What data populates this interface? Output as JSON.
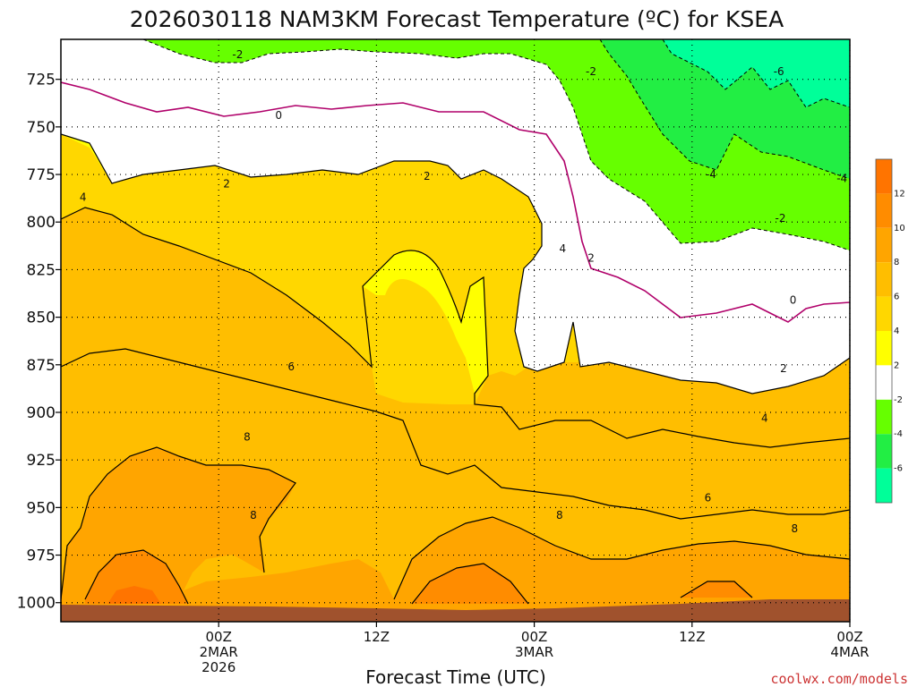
{
  "chart_data": {
    "type": "heatmap",
    "title": "2026030118 NAM3KM Forecast Temperature (ºC) for KSEA",
    "xlabel": "Forecast Time (UTC)",
    "credit": "coolwx.com/models",
    "y_axis": {
      "ticks": [
        "725",
        "750",
        "775",
        "800",
        "825",
        "850",
        "875",
        "900",
        "925",
        "950",
        "975",
        "1000"
      ],
      "values": [
        725,
        750,
        775,
        800,
        825,
        850,
        875,
        900,
        925,
        950,
        975,
        1000
      ],
      "range": [
        704,
        1010
      ],
      "inverted": true,
      "unit": "hPa"
    },
    "x_axis": {
      "range_hours": [
        -10,
        40
      ],
      "ticks": [
        {
          "hour": 0,
          "lines": [
            "00Z",
            "2MAR",
            "2026"
          ]
        },
        {
          "hour": 10,
          "lines": [
            "12Z"
          ]
        },
        {
          "hour": 20,
          "lines": [
            "00Z",
            "3MAR"
          ]
        },
        {
          "hour": 30,
          "lines": [
            "12Z"
          ]
        },
        {
          "hour": 40,
          "lines": [
            "00Z",
            "4MAR"
          ]
        }
      ]
    },
    "color_scale": {
      "bands": [
        {
          "from": 12,
          "to": 14,
          "color": "#FF7400"
        },
        {
          "from": 10,
          "to": 12,
          "color": "#FF8C00"
        },
        {
          "from": 8,
          "to": 10,
          "color": "#FFA500"
        },
        {
          "from": 6,
          "to": 8,
          "color": "#FFBE00"
        },
        {
          "from": 4,
          "to": 6,
          "color": "#FFD700"
        },
        {
          "from": 2,
          "to": 4,
          "color": "#FFFF00"
        },
        {
          "from": -2,
          "to": 2,
          "color": "#FFFFFF"
        },
        {
          "from": -4,
          "to": -2,
          "color": "#66FF00"
        },
        {
          "from": -6,
          "to": -4,
          "color": "#22EE44"
        },
        {
          "from": -8,
          "to": -6,
          "color": "#00FF99"
        }
      ],
      "tick_labels": [
        "12",
        "10",
        "8",
        "6",
        "4",
        "2",
        "-2",
        "-4",
        "-6"
      ]
    },
    "contour_labels": [
      {
        "text": "-2",
        "hour": 1.2,
        "p": 712
      },
      {
        "text": "-2",
        "hour": 23.6,
        "p": 721
      },
      {
        "text": "-6",
        "hour": 35.5,
        "p": 721
      },
      {
        "text": "0",
        "hour": 3.8,
        "p": 744
      },
      {
        "text": "-4",
        "hour": 31.2,
        "p": 775
      },
      {
        "text": "-4",
        "hour": 39.5,
        "p": 777
      },
      {
        "text": "2",
        "hour": 0.5,
        "p": 780
      },
      {
        "text": "2",
        "hour": 13.2,
        "p": 776
      },
      {
        "text": "4",
        "hour": -8.6,
        "p": 787
      },
      {
        "text": "-2",
        "hour": 35.6,
        "p": 798
      },
      {
        "text": "4",
        "hour": 21.8,
        "p": 814
      },
      {
        "text": "2",
        "hour": 23.6,
        "p": 819
      },
      {
        "text": "0",
        "hour": 36.4,
        "p": 841
      },
      {
        "text": "6",
        "hour": 4.6,
        "p": 876
      },
      {
        "text": "2",
        "hour": 35.8,
        "p": 877
      },
      {
        "text": "4",
        "hour": 34.6,
        "p": 903
      },
      {
        "text": "8",
        "hour": 1.8,
        "p": 913
      },
      {
        "text": "6",
        "hour": 31.0,
        "p": 945
      },
      {
        "text": "8",
        "hour": 2.2,
        "p": 954
      },
      {
        "text": "8",
        "hour": 21.6,
        "p": 954
      },
      {
        "text": "8",
        "hour": 36.5,
        "p": 961
      }
    ]
  }
}
